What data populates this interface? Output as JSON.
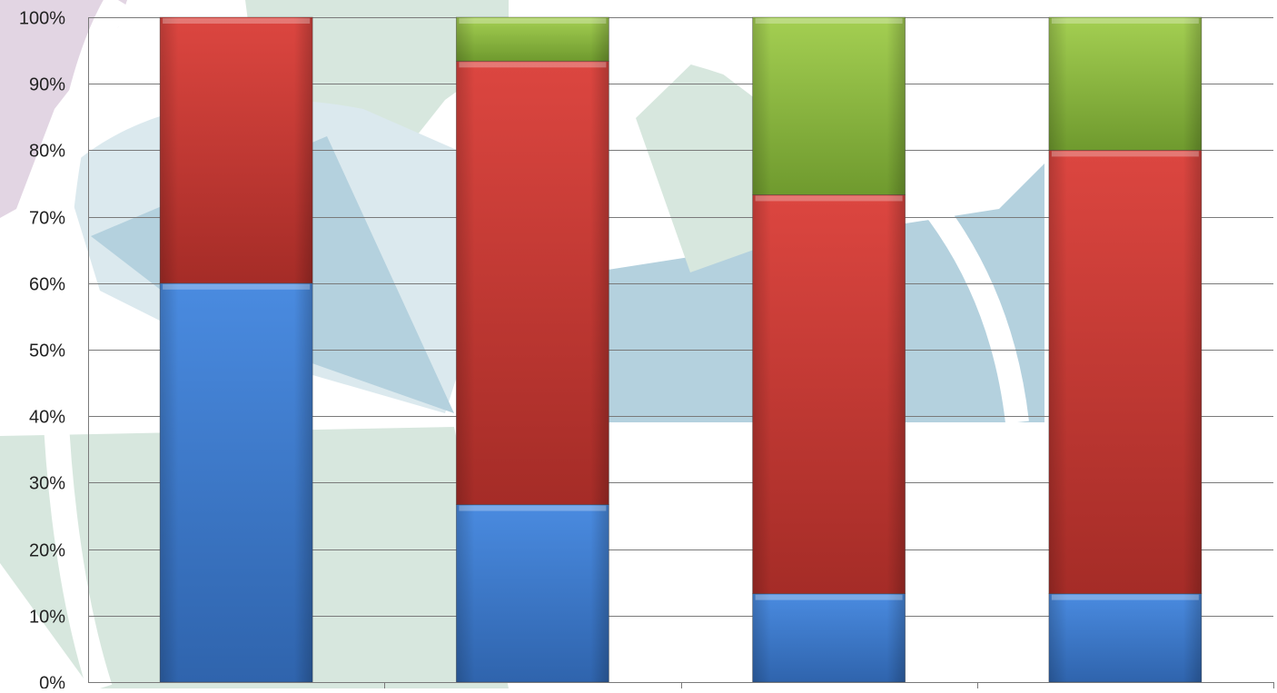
{
  "chart_data": {
    "type": "bar",
    "stacked": true,
    "percent": true,
    "categories": [
      "",
      "",
      "",
      ""
    ],
    "series": [
      {
        "values": [
          60,
          26.7,
          13.3,
          13.3
        ],
        "color": "#3a78c9"
      },
      {
        "values": [
          40,
          66.7,
          60,
          66.7
        ],
        "color": "#c8372f"
      },
      {
        "values": [
          0,
          6.6,
          26.7,
          20
        ],
        "color": "#86b03c"
      }
    ],
    "ylim": [
      0,
      100
    ],
    "y_ticks": [
      "0%",
      "10%",
      "20%",
      "30%",
      "40%",
      "50%",
      "60%",
      "70%",
      "80%",
      "90%",
      "100%"
    ],
    "grid": true,
    "legend": "none",
    "background_colors": [
      "#e2d5e3",
      "#d7e7de",
      "#dbe9ee",
      "#b4d1de"
    ]
  }
}
